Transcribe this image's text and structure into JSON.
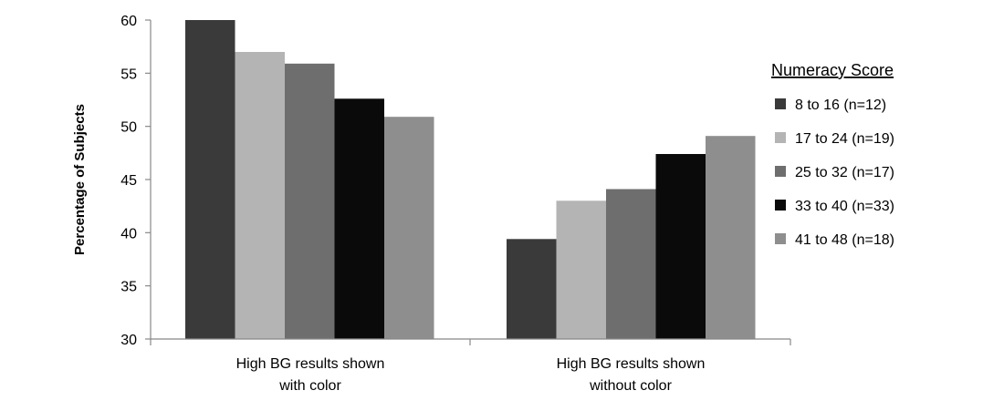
{
  "chart_data": {
    "type": "bar",
    "title": "",
    "xlabel": "",
    "ylabel": "Percentage of Subjects",
    "ylim": [
      30,
      60
    ],
    "yticks": [
      30,
      35,
      40,
      45,
      50,
      55,
      60
    ],
    "grid": false,
    "legend_title": "Numeracy Score",
    "legend_position": "right",
    "categories": [
      [
        "High BG results shown",
        "with color"
      ],
      [
        "High BG results shown",
        "without color"
      ]
    ],
    "series": [
      {
        "name": "8 to 16 (n=12)",
        "color": "#3a3a3a",
        "values": [
          60.0,
          39.4
        ]
      },
      {
        "name": "17 to 24 (n=19)",
        "color": "#b4b4b4",
        "values": [
          57.0,
          43.0
        ]
      },
      {
        "name": "25 to 32 (n=17)",
        "color": "#6e6e6e",
        "values": [
          55.9,
          44.1
        ]
      },
      {
        "name": "33 to 40 (n=33)",
        "color": "#0a0a0a",
        "values": [
          52.6,
          47.4
        ]
      },
      {
        "name": "41 to 48 (n=18)",
        "color": "#8e8e8e",
        "values": [
          50.9,
          49.1
        ]
      }
    ]
  }
}
